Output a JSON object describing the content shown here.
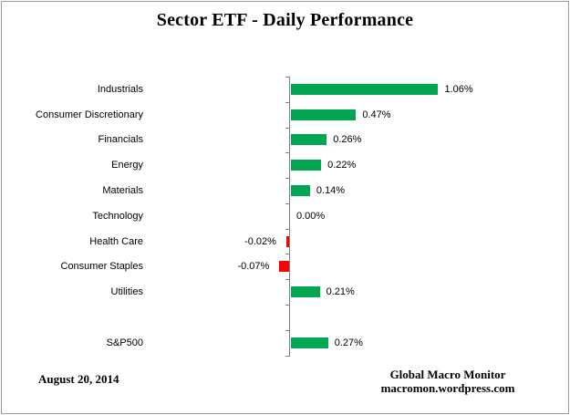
{
  "title": "Sector ETF - Daily Performance",
  "footer": {
    "date": "August 20, 2014",
    "source_line1": "Global Macro Monitor",
    "source_line2": "macromon.wordpress.com"
  },
  "colors": {
    "positive": "#00A651",
    "negative": "#FF0000",
    "axis": "#7f7f7f",
    "border": "#9c9c9c",
    "text": "#000000"
  },
  "chart_data": {
    "type": "bar",
    "orientation": "horizontal",
    "title": "Sector ETF - Daily Performance",
    "xlabel": "",
    "ylabel": "",
    "grid": false,
    "legend": false,
    "color_rule": "positive bars green, negative bars red",
    "categories": [
      "Industrials",
      "Consumer Discretionary",
      "Financials",
      "Energy",
      "Materials",
      "Technology",
      "Health Care",
      "Consumer Staples",
      "Utilities",
      "",
      "S&P500"
    ],
    "values": [
      1.06,
      0.47,
      0.26,
      0.22,
      0.14,
      0.0,
      -0.02,
      -0.07,
      0.21,
      null,
      0.27
    ],
    "value_labels": [
      "1.06%",
      "0.47%",
      "0.26%",
      "0.22%",
      "0.14%",
      "0.00%",
      "-0.02%",
      "-0.07%",
      "0.21%",
      "",
      "0.27%"
    ]
  }
}
